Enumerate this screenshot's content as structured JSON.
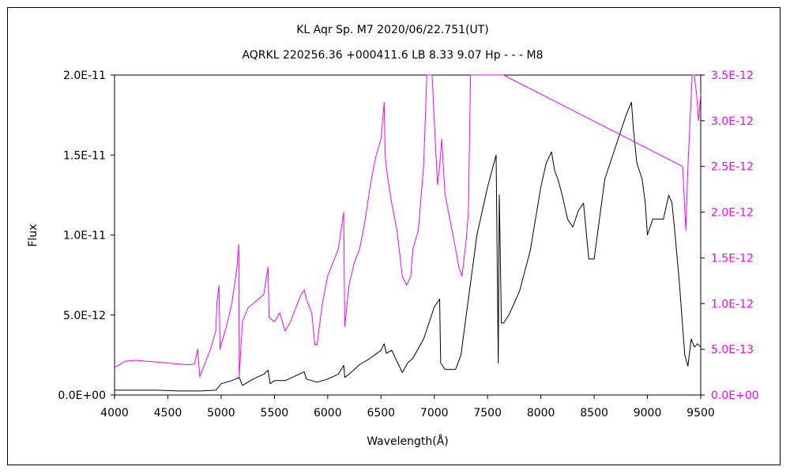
{
  "chart_data": {
    "type": "line",
    "title": "KL Aqr    Sp. M7    2020/06/22.751(UT)",
    "subtitle": "AQRKL 220256.36 +000411.6 LB 8.33 9.07 Hp - - - M8",
    "xlabel": "Wavelength(Å)",
    "ylabel": "Flux",
    "xlim": [
      4000,
      9500
    ],
    "ylim": [
      0,
      2e-11
    ],
    "y2lim": [
      0,
      3.5e-12
    ],
    "x_ticks": [
      "4000",
      "4500",
      "5000",
      "5500",
      "6000",
      "6500",
      "7000",
      "7500",
      "8000",
      "8500",
      "9000",
      "9500"
    ],
    "y_ticks": [
      "0.0E+00",
      "5.0E-12",
      "1.0E-11",
      "1.5E-11",
      "2.0E-11"
    ],
    "y2_ticks": [
      "0.0E+00",
      "5.0E-13",
      "1.0E-12",
      "1.5E-12",
      "2.0E-12",
      "2.5E-12",
      "3.0E-12",
      "3.5E-12"
    ],
    "grid": false,
    "series": [
      {
        "axis": "left",
        "color": "#000000",
        "x": [
          4000,
          4200,
          4400,
          4600,
          4800,
          4950,
          5000,
          5100,
          5170,
          5200,
          5300,
          5400,
          5440,
          5460,
          5500,
          5600,
          5700,
          5780,
          5800,
          5900,
          6000,
          6100,
          6150,
          6160,
          6200,
          6300,
          6400,
          6500,
          6530,
          6550,
          6600,
          6700,
          6750,
          6800,
          6900,
          7000,
          7050,
          7060,
          7100,
          7200,
          7250,
          7300,
          7400,
          7500,
          7580,
          7600,
          7610,
          7630,
          7650,
          7700,
          7800,
          7900,
          8000,
          8050,
          8100,
          8130,
          8160,
          8200,
          8250,
          8300,
          8350,
          8400,
          8450,
          8500,
          8550,
          8600,
          8700,
          8750,
          8800,
          8850,
          8870,
          8900,
          8950,
          8980,
          9000,
          9050,
          9100,
          9150,
          9200,
          9230,
          9260,
          9300,
          9350,
          9380,
          9410,
          9440,
          9470,
          9500
        ],
        "values": [
          3e-13,
          3e-13,
          3e-13,
          2.5e-13,
          2.5e-13,
          3e-13,
          7e-13,
          9e-13,
          1.1e-12,
          6e-13,
          1e-12,
          1.3e-12,
          1.55e-12,
          7e-13,
          9e-13,
          9e-13,
          1.2e-12,
          1.45e-12,
          1e-12,
          8e-13,
          1e-12,
          1.3e-12,
          1.85e-12,
          1.1e-12,
          1.3e-12,
          1.9e-12,
          2.3e-12,
          2.8e-12,
          3.2e-12,
          2.6e-12,
          2.8e-12,
          1.4e-12,
          2e-12,
          2.3e-12,
          3.5e-12,
          5.5e-12,
          6e-12,
          2e-12,
          1.6e-12,
          1.6e-12,
          2.5e-12,
          5e-12,
          1e-11,
          1.3e-11,
          1.5e-11,
          2e-12,
          1.25e-11,
          4.5e-12,
          4.5e-12,
          5e-12,
          6.5e-12,
          9e-12,
          1.3e-11,
          1.45e-11,
          1.52e-11,
          1.4e-11,
          1.35e-11,
          1.25e-11,
          1.1e-11,
          1.05e-11,
          1.15e-11,
          1.2e-11,
          8.5e-12,
          8.5e-12,
          1.1e-11,
          1.35e-11,
          1.55e-11,
          1.65e-11,
          1.75e-11,
          1.83e-11,
          1.65e-11,
          1.45e-11,
          1.35e-11,
          1.2e-11,
          1e-11,
          1.1e-11,
          1.1e-11,
          1.1e-11,
          1.25e-11,
          1.2e-11,
          1e-11,
          7e-12,
          2.5e-12,
          1.8e-12,
          3.5e-12,
          3e-12,
          3.2e-12,
          3e-12
        ]
      },
      {
        "axis": "right",
        "color": "#ff00ff",
        "x": [
          4000,
          4100,
          4200,
          4300,
          4400,
          4500,
          4600,
          4700,
          4750,
          4780,
          4800,
          4850,
          4900,
          4950,
          4960,
          4980,
          4990,
          5000,
          5050,
          5100,
          5150,
          5165,
          5170,
          5200,
          5250,
          5300,
          5350,
          5400,
          5440,
          5450,
          5500,
          5550,
          5600,
          5650,
          5700,
          5750,
          5780,
          5800,
          5850,
          5880,
          5900,
          5950,
          6000,
          6050,
          6100,
          6150,
          6160,
          6200,
          6250,
          6300,
          6350,
          6400,
          6450,
          6500,
          6530,
          6540,
          6560,
          6600,
          6650,
          6700,
          6740,
          6780,
          6800,
          6850,
          6900,
          6930,
          6960,
          6980,
          7000,
          7030,
          7050,
          7070,
          7100,
          7150,
          7200,
          7230,
          7260,
          7280,
          7300,
          7320,
          7340,
          7400,
          7450,
          7500,
          7550,
          7580,
          7600,
          7610,
          7630,
          7650,
          9330,
          9360,
          9380,
          9400,
          9420,
          9440,
          9460,
          9480,
          9500
        ],
        "values": [
          3e-13,
          3.7e-13,
          3.8e-13,
          3.7e-13,
          3.6e-13,
          3.5e-13,
          3.4e-13,
          3.3e-13,
          3.4e-13,
          5e-13,
          2e-13,
          3.5e-13,
          5e-13,
          7e-13,
          1e-12,
          1.2e-12,
          5e-13,
          5.5e-13,
          7.5e-13,
          1e-12,
          1.4e-12,
          1.65e-12,
          2e-13,
          8e-13,
          9.5e-13,
          1e-12,
          1.05e-12,
          1.1e-12,
          1.4e-12,
          8.5e-13,
          8e-13,
          9e-13,
          7e-13,
          8e-13,
          9.5e-13,
          1.1e-12,
          1.15e-12,
          1.05e-12,
          9e-13,
          5.5e-13,
          5.5e-13,
          1e-12,
          1.3e-12,
          1.45e-12,
          1.6e-12,
          2e-12,
          7.5e-13,
          1.2e-12,
          1.45e-12,
          1.6e-12,
          1.9e-12,
          2.3e-12,
          2.6e-12,
          2.8e-12,
          3.2e-12,
          2.6e-12,
          2.4e-12,
          2.1e-12,
          1.8e-12,
          1.3e-12,
          1.2e-12,
          1.3e-12,
          1.6e-12,
          1.8e-12,
          2.5e-12,
          3.5e-12,
          3.5e-12,
          3.5e-12,
          3e-12,
          2.3e-12,
          2.5e-12,
          2.8e-12,
          2.2e-12,
          1.9e-12,
          1.6e-12,
          1.4e-12,
          1.3e-12,
          1.5e-12,
          1.7e-12,
          2e-12,
          3.5e-12,
          3.5e-12,
          3.5e-12,
          3.5e-12,
          3.5e-12,
          3.5e-12,
          3.5e-12,
          3.5e-12,
          3.5e-12,
          3.5e-12,
          2.5e-12,
          1.8e-12,
          2.5e-12,
          3e-12,
          3.5e-12,
          3.5e-12,
          3.3e-12,
          3e-12,
          3.3e-12
        ]
      }
    ]
  }
}
